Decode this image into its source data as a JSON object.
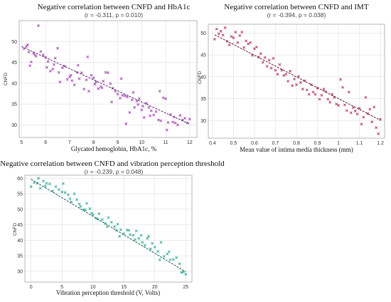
{
  "chart_data": [
    {
      "type": "scatter",
      "title": "Negative correlation between CNFD and HbA1c",
      "subtitle": "(r = -0.311, p = 0.010)",
      "xlabel": "Glycated hemoglobin, HbA1c, %",
      "ylabel": "CNFD",
      "xlim": [
        4.9,
        12.3
      ],
      "ylim": [
        27,
        55
      ],
      "xticks": [
        5,
        6,
        7,
        8,
        9,
        10,
        11,
        12
      ],
      "yticks": [
        30,
        35,
        40,
        45,
        50
      ],
      "grid": true,
      "marker_color": "#a040b0",
      "trend_color": "#5a2a6a",
      "trend": [
        [
          5.0,
          48.8
        ],
        [
          12.0,
          30.2
        ]
      ],
      "points": [
        [
          5.1,
          48.3
        ],
        [
          5.2,
          48.8
        ],
        [
          5.25,
          49.2
        ],
        [
          5.3,
          47.5
        ],
        [
          5.35,
          44.2
        ],
        [
          5.4,
          45.1
        ],
        [
          5.5,
          47.2
        ],
        [
          5.55,
          46.8
        ],
        [
          5.6,
          46.5
        ],
        [
          5.7,
          53.8
        ],
        [
          5.8,
          47.6
        ],
        [
          5.9,
          46.8
        ],
        [
          6.0,
          46.2
        ],
        [
          6.05,
          43.8
        ],
        [
          6.1,
          45.2
        ],
        [
          6.2,
          42.9
        ],
        [
          6.3,
          43.4
        ],
        [
          6.35,
          44.5
        ],
        [
          6.4,
          46.0
        ],
        [
          6.5,
          48.4
        ],
        [
          6.55,
          42.6
        ],
        [
          6.6,
          40.3
        ],
        [
          6.7,
          43.7
        ],
        [
          6.8,
          44.1
        ],
        [
          6.9,
          40.9
        ],
        [
          7.0,
          41.5
        ],
        [
          7.05,
          41.9
        ],
        [
          7.1,
          40.6
        ],
        [
          7.2,
          39.6
        ],
        [
          7.3,
          42.6
        ],
        [
          7.35,
          44.3
        ],
        [
          7.4,
          41.1
        ],
        [
          7.5,
          42.5
        ],
        [
          7.6,
          38.6
        ],
        [
          7.7,
          40.8
        ],
        [
          7.75,
          46.3
        ],
        [
          7.8,
          38.1
        ],
        [
          7.9,
          41.9
        ],
        [
          8.0,
          41.3
        ],
        [
          8.05,
          39.8
        ],
        [
          8.1,
          40.3
        ],
        [
          8.2,
          38.7
        ],
        [
          8.3,
          39.2
        ],
        [
          8.35,
          38.9
        ],
        [
          8.4,
          40.5
        ],
        [
          8.5,
          42.6
        ],
        [
          8.6,
          42.5
        ],
        [
          8.7,
          39.9
        ],
        [
          8.75,
          35.5
        ],
        [
          8.8,
          38.8
        ],
        [
          8.9,
          38.1
        ],
        [
          9.0,
          37.4
        ],
        [
          9.1,
          36.4
        ],
        [
          9.15,
          41.1
        ],
        [
          9.2,
          37.1
        ],
        [
          9.3,
          37.0
        ],
        [
          9.35,
          30.3
        ],
        [
          9.4,
          36.7
        ],
        [
          9.5,
          33.0
        ],
        [
          9.6,
          36.0
        ],
        [
          9.65,
          37.8
        ],
        [
          9.7,
          34.2
        ],
        [
          9.8,
          35.7
        ],
        [
          9.85,
          34.9
        ],
        [
          9.9,
          36.3
        ],
        [
          10.0,
          33.6
        ],
        [
          10.05,
          34.5
        ],
        [
          10.1,
          31.8
        ],
        [
          10.2,
          35.2
        ],
        [
          10.3,
          34.2
        ],
        [
          10.35,
          32.2
        ],
        [
          10.4,
          33.4
        ],
        [
          10.5,
          32.4
        ],
        [
          10.6,
          33.2
        ],
        [
          10.7,
          31.2
        ],
        [
          10.75,
          38.1
        ],
        [
          10.8,
          31.0
        ],
        [
          10.9,
          36.5
        ],
        [
          11.0,
          36.3
        ],
        [
          11.05,
          28.8
        ],
        [
          11.1,
          30.6
        ],
        [
          11.2,
          32.5
        ],
        [
          11.3,
          30.7
        ],
        [
          11.35,
          31.9
        ],
        [
          11.4,
          30.5
        ],
        [
          11.5,
          30.0
        ],
        [
          11.6,
          32.3
        ],
        [
          11.7,
          31.2
        ],
        [
          11.8,
          31.6
        ],
        [
          11.9,
          30.5
        ],
        [
          12.0,
          31.4
        ]
      ]
    },
    {
      "type": "scatter",
      "title": "Negative correlation between CNFD and IMT",
      "subtitle": "(r = -0.394, p = 0.038)",
      "xlabel": "Mean value of intima media thickness (mm)",
      "ylabel": "CNFD",
      "xlim": [
        0.38,
        1.22
      ],
      "ylim": [
        26,
        52
      ],
      "xticks": [
        0.4,
        0.5,
        0.6,
        0.7,
        0.8,
        0.9,
        1.0,
        1.1,
        1.2
      ],
      "yticks": [
        30,
        35,
        40,
        45,
        50
      ],
      "grid": true,
      "marker_color": "#b03050",
      "trend_color": "#5a1a28",
      "trend": [
        [
          0.41,
          49.6
        ],
        [
          1.2,
          30.1
        ]
      ],
      "points": [
        [
          0.41,
          48.6
        ],
        [
          0.42,
          50.9
        ],
        [
          0.43,
          49.8
        ],
        [
          0.44,
          50.4
        ],
        [
          0.45,
          49.5
        ],
        [
          0.46,
          51.2
        ],
        [
          0.47,
          48.1
        ],
        [
          0.48,
          47.3
        ],
        [
          0.49,
          49.2
        ],
        [
          0.5,
          48.9
        ],
        [
          0.51,
          50.2
        ],
        [
          0.52,
          47.8
        ],
        [
          0.53,
          49.4
        ],
        [
          0.54,
          50.2
        ],
        [
          0.55,
          46.7
        ],
        [
          0.56,
          48.2
        ],
        [
          0.57,
          47.5
        ],
        [
          0.58,
          47.8
        ],
        [
          0.59,
          44.9
        ],
        [
          0.6,
          46.4
        ],
        [
          0.61,
          46.8
        ],
        [
          0.62,
          44.5
        ],
        [
          0.63,
          45.3
        ],
        [
          0.64,
          43.3
        ],
        [
          0.65,
          44.4
        ],
        [
          0.66,
          42.4
        ],
        [
          0.67,
          43.8
        ],
        [
          0.68,
          42.0
        ],
        [
          0.69,
          44.2
        ],
        [
          0.7,
          41.5
        ],
        [
          0.71,
          40.6
        ],
        [
          0.72,
          42.8
        ],
        [
          0.73,
          41.5
        ],
        [
          0.74,
          40.3
        ],
        [
          0.75,
          40.6
        ],
        [
          0.76,
          39.0
        ],
        [
          0.77,
          41.3
        ],
        [
          0.78,
          38.0
        ],
        [
          0.79,
          39.5
        ],
        [
          0.8,
          38.2
        ],
        [
          0.81,
          40.1
        ],
        [
          0.82,
          38.7
        ],
        [
          0.83,
          37.2
        ],
        [
          0.84,
          39.1
        ],
        [
          0.85,
          37.0
        ],
        [
          0.86,
          36.0
        ],
        [
          0.87,
          38.2
        ],
        [
          0.88,
          36.5
        ],
        [
          0.89,
          36.0
        ],
        [
          0.9,
          37.4
        ],
        [
          0.91,
          34.9
        ],
        [
          0.92,
          35.8
        ],
        [
          0.93,
          37.2
        ],
        [
          0.94,
          36.6
        ],
        [
          0.95,
          34.9
        ],
        [
          0.96,
          34.2
        ],
        [
          0.97,
          36.0
        ],
        [
          0.98,
          35.3
        ],
        [
          0.99,
          33.8
        ],
        [
          1.0,
          33.5
        ],
        [
          1.01,
          39.4
        ],
        [
          1.02,
          37.6
        ],
        [
          1.03,
          33.6
        ],
        [
          1.04,
          32.3
        ],
        [
          1.05,
          36.5
        ],
        [
          1.06,
          31.8
        ],
        [
          1.07,
          33.0
        ],
        [
          1.08,
          32.2
        ],
        [
          1.09,
          31.5
        ],
        [
          1.1,
          32.8
        ],
        [
          1.11,
          29.2
        ],
        [
          1.12,
          30.8
        ],
        [
          1.13,
          35.3
        ],
        [
          1.14,
          31.6
        ],
        [
          1.15,
          32.6
        ],
        [
          1.16,
          29.7
        ],
        [
          1.17,
          33.1
        ],
        [
          1.18,
          28.4
        ],
        [
          1.19,
          27.0
        ],
        [
          1.2,
          30.3
        ]
      ]
    },
    {
      "type": "scatter",
      "title": "Negative correlation between CNFD and vibration perception threshold",
      "subtitle": "(r = -0.239, p = 0.048)",
      "xlabel": "Vibration perception threshold (V, Volts)",
      "ylabel": "CNFD",
      "xlim": [
        -1,
        26
      ],
      "ylim": [
        26.5,
        61
      ],
      "xticks": [
        0,
        5,
        10,
        15,
        20,
        25
      ],
      "yticks": [
        30,
        35,
        40,
        45,
        50,
        55,
        60
      ],
      "grid": true,
      "marker_color": "#2aa898",
      "trend_color": "#1a5a56",
      "trend": [
        [
          0.0,
          59.7
        ],
        [
          25.0,
          29.8
        ]
      ],
      "points": [
        [
          0.0,
          57.3
        ],
        [
          0.5,
          58.6
        ],
        [
          1.0,
          58.4
        ],
        [
          1.2,
          60.0
        ],
        [
          1.5,
          56.8
        ],
        [
          2.0,
          59.1
        ],
        [
          2.3,
          57.5
        ],
        [
          2.5,
          58.4
        ],
        [
          3.0,
          58.2
        ],
        [
          3.5,
          55.9
        ],
        [
          4.0,
          57.3
        ],
        [
          4.5,
          56.4
        ],
        [
          5.0,
          55.6
        ],
        [
          5.2,
          58.3
        ],
        [
          5.5,
          55.4
        ],
        [
          6.0,
          54.7
        ],
        [
          6.3,
          53.4
        ],
        [
          6.5,
          52.4
        ],
        [
          7.0,
          55.0
        ],
        [
          7.4,
          53.1
        ],
        [
          7.8,
          51.7
        ],
        [
          8.0,
          50.9
        ],
        [
          8.5,
          49.9
        ],
        [
          8.8,
          49.8
        ],
        [
          9.0,
          51.9
        ],
        [
          9.5,
          50.2
        ],
        [
          9.8,
          48.7
        ],
        [
          10.0,
          48.3
        ],
        [
          10.5,
          47.1
        ],
        [
          10.8,
          46.8
        ],
        [
          11.0,
          48.6
        ],
        [
          11.5,
          46.7
        ],
        [
          12.0,
          45.4
        ],
        [
          12.3,
          44.4
        ],
        [
          12.5,
          47.3
        ],
        [
          13.0,
          45.8
        ],
        [
          13.5,
          44.4
        ],
        [
          13.8,
          43.2
        ],
        [
          14.0,
          45.2
        ],
        [
          14.3,
          41.3
        ],
        [
          14.5,
          43.4
        ],
        [
          15.0,
          42.1
        ],
        [
          15.5,
          43.3
        ],
        [
          15.8,
          43.2
        ],
        [
          16.0,
          41.8
        ],
        [
          16.5,
          41.6
        ],
        [
          16.8,
          40.2
        ],
        [
          17.0,
          43.0
        ],
        [
          17.4,
          40.6
        ],
        [
          17.8,
          41.6
        ],
        [
          18.0,
          39.3
        ],
        [
          18.4,
          38.4
        ],
        [
          18.8,
          40.6
        ],
        [
          19.0,
          41.3
        ],
        [
          19.3,
          37.2
        ],
        [
          19.6,
          39.0
        ],
        [
          20.0,
          37.8
        ],
        [
          20.5,
          36.4
        ],
        [
          20.8,
          33.7
        ],
        [
          21.0,
          39.3
        ],
        [
          21.5,
          34.8
        ],
        [
          22.0,
          35.6
        ],
        [
          22.3,
          36.3
        ],
        [
          22.5,
          33.7
        ],
        [
          23.0,
          33.8
        ],
        [
          23.5,
          34.4
        ],
        [
          24.0,
          32.4
        ],
        [
          24.3,
          29.6
        ],
        [
          24.6,
          29.8
        ],
        [
          25.0,
          29.0
        ]
      ]
    }
  ]
}
